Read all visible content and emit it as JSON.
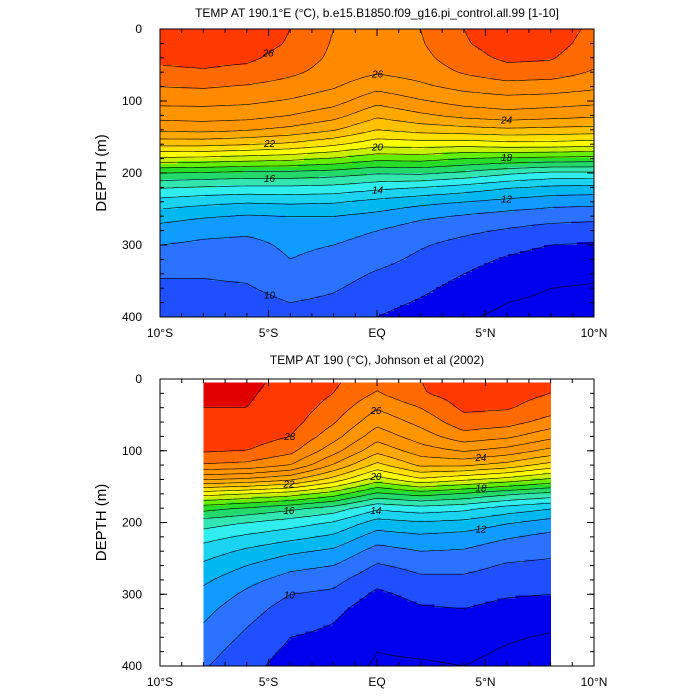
{
  "colors": {
    "frame": "#000000",
    "contour_line": "#000000",
    "background": "#ffffff",
    "scale": [
      {
        "temp": 8,
        "color": "#0000ee"
      },
      {
        "temp": 9,
        "color": "#1f4fff"
      },
      {
        "temp": 10,
        "color": "#2a72ff"
      },
      {
        "temp": 11,
        "color": "#0f9bff"
      },
      {
        "temp": 12,
        "color": "#00b7f0"
      },
      {
        "temp": 13,
        "color": "#19d3f0"
      },
      {
        "temp": 14,
        "color": "#30eeee"
      },
      {
        "temp": 15,
        "color": "#33e6b0"
      },
      {
        "temp": 16,
        "color": "#22d96a"
      },
      {
        "temp": 17,
        "color": "#28dd28"
      },
      {
        "temp": 18,
        "color": "#66ee00"
      },
      {
        "temp": 19,
        "color": "#c8f000"
      },
      {
        "temp": 20,
        "color": "#fdfd00"
      },
      {
        "temp": 21,
        "color": "#ffe000"
      },
      {
        "temp": 22,
        "color": "#ffc000"
      },
      {
        "temp": 23,
        "color": "#ffa800"
      },
      {
        "temp": 24,
        "color": "#ff9600"
      },
      {
        "temp": 26,
        "color": "#ff8a00"
      },
      {
        "temp": 27,
        "color": "#ff6a00"
      },
      {
        "temp": 28,
        "color": "#ff3a00"
      },
      {
        "temp": 29,
        "color": "#e00000"
      }
    ]
  },
  "chart_data": [
    {
      "type": "contour",
      "title": "TEMP AT 190.1°E (°C), b.e15.B1850.f09_g16.pi_control.all.99 [1-10]",
      "ylabel": "DEPTH (m)",
      "xlabel": "",
      "xlim": [
        -10,
        10
      ],
      "ylim": [
        400,
        0
      ],
      "y_inverted": true,
      "x_ticks": [
        {
          "value": -10,
          "label": "10°S"
        },
        {
          "value": -5,
          "label": "5°S"
        },
        {
          "value": 0,
          "label": "EQ"
        },
        {
          "value": 5,
          "label": "5°N"
        },
        {
          "value": 10,
          "label": "10°N"
        }
      ],
      "y_ticks": [
        {
          "value": 0,
          "label": "0"
        },
        {
          "value": 100,
          "label": "100"
        },
        {
          "value": 200,
          "label": "200"
        },
        {
          "value": 300,
          "label": "300"
        },
        {
          "value": 400,
          "label": "400"
        }
      ],
      "data_xlim": [
        -10,
        10
      ],
      "contour_interval": 1,
      "field": {
        "x": [
          -10,
          -8,
          -6,
          -4,
          -2,
          0,
          2,
          4,
          6,
          8,
          10
        ],
        "y": [
          0,
          20,
          40,
          60,
          80,
          100,
          120,
          140,
          160,
          180,
          200,
          220,
          240,
          260,
          280,
          300,
          320,
          340,
          360,
          380,
          400
        ],
        "z": [
          [
            28.5,
            28.6,
            28.6,
            28.0,
            27.0,
            26.8,
            27.0,
            28.0,
            28.6,
            28.5,
            27.8
          ],
          [
            28.4,
            28.5,
            28.5,
            27.9,
            26.9,
            26.7,
            26.9,
            27.9,
            28.5,
            28.4,
            27.6
          ],
          [
            28.2,
            28.3,
            28.2,
            27.6,
            26.8,
            26.5,
            26.7,
            27.6,
            28.2,
            28.1,
            27.3
          ],
          [
            27.8,
            27.9,
            27.7,
            27.2,
            26.6,
            26.1,
            26.4,
            27.1,
            27.6,
            27.5,
            26.9
          ],
          [
            27.0,
            27.1,
            26.9,
            26.6,
            26.1,
            25.3,
            25.8,
            26.3,
            26.6,
            26.5,
            26.2
          ],
          [
            26.3,
            26.3,
            26.2,
            25.9,
            25.4,
            24.3,
            24.9,
            25.4,
            25.6,
            25.5,
            25.3
          ],
          [
            25.4,
            25.5,
            25.4,
            25.0,
            24.4,
            23.2,
            23.8,
            24.3,
            24.6,
            24.4,
            24.2
          ],
          [
            24.2,
            24.3,
            24.1,
            23.7,
            23.1,
            22.0,
            22.4,
            22.6,
            22.8,
            22.7,
            22.6
          ],
          [
            22.3,
            22.3,
            22.1,
            21.8,
            21.2,
            20.4,
            20.5,
            20.4,
            20.6,
            20.6,
            20.4
          ],
          [
            19.8,
            19.7,
            19.5,
            19.3,
            18.9,
            18.3,
            18.4,
            18.0,
            17.8,
            17.7,
            17.6
          ],
          [
            17.0,
            16.9,
            16.7,
            16.7,
            16.5,
            16.1,
            16.2,
            15.8,
            15.2,
            14.8,
            14.8
          ],
          [
            15.1,
            14.9,
            14.8,
            14.8,
            14.7,
            14.3,
            14.0,
            13.6,
            13.1,
            12.8,
            12.7
          ],
          [
            13.6,
            13.3,
            13.1,
            13.2,
            13.1,
            12.7,
            12.3,
            12.0,
            11.7,
            11.4,
            11.3
          ],
          [
            12.4,
            12.1,
            11.9,
            12.0,
            12.0,
            11.7,
            11.2,
            10.9,
            10.6,
            10.4,
            10.3
          ],
          [
            11.6,
            11.3,
            11.2,
            11.4,
            11.4,
            11.0,
            10.5,
            10.2,
            9.9,
            9.6,
            9.5
          ],
          [
            11.0,
            10.8,
            10.7,
            11.2,
            11.0,
            10.6,
            10.1,
            9.7,
            9.3,
            9.0,
            8.9
          ],
          [
            10.5,
            10.4,
            10.4,
            11.0,
            10.7,
            10.3,
            9.8,
            9.3,
            8.9,
            8.6,
            8.5
          ],
          [
            10.1,
            10.1,
            10.2,
            10.7,
            10.4,
            9.9,
            9.5,
            9.0,
            8.6,
            8.3,
            8.2
          ],
          [
            9.8,
            9.8,
            9.9,
            10.4,
            10.1,
            9.6,
            9.2,
            8.7,
            8.3,
            8.0,
            7.9
          ],
          [
            9.4,
            9.5,
            9.6,
            10.0,
            9.8,
            9.3,
            8.9,
            8.4,
            8.0,
            7.8,
            7.7
          ],
          [
            9.1,
            9.2,
            9.3,
            9.6,
            9.5,
            9.0,
            8.6,
            8.1,
            7.8,
            7.6,
            7.5
          ]
        ]
      },
      "labeled_contours": [
        {
          "value": 28,
          "label": "28"
        },
        {
          "value": 26,
          "label": "26"
        },
        {
          "value": 24,
          "label": "24"
        },
        {
          "value": 22,
          "label": "22"
        },
        {
          "value": 20,
          "label": "20"
        },
        {
          "value": 18,
          "label": "18"
        },
        {
          "value": 16,
          "label": "16"
        },
        {
          "value": 14,
          "label": "14"
        },
        {
          "value": 12,
          "label": "12"
        },
        {
          "value": 10,
          "label": "10"
        }
      ]
    },
    {
      "type": "contour",
      "title": "TEMP AT 190 (°C), Johnson et al (2002)",
      "ylabel": "DEPTH (m)",
      "xlabel": "",
      "xlim": [
        -10,
        10
      ],
      "ylim": [
        400,
        0
      ],
      "y_inverted": true,
      "x_ticks": [
        {
          "value": -10,
          "label": "10°S"
        },
        {
          "value": -5,
          "label": "5°S"
        },
        {
          "value": 0,
          "label": "EQ"
        },
        {
          "value": 5,
          "label": "5°N"
        },
        {
          "value": 10,
          "label": "10°N"
        }
      ],
      "y_ticks": [
        {
          "value": 0,
          "label": "0"
        },
        {
          "value": 100,
          "label": "100"
        },
        {
          "value": 200,
          "label": "200"
        },
        {
          "value": 300,
          "label": "300"
        },
        {
          "value": 400,
          "label": "400"
        }
      ],
      "data_xlim": [
        -8,
        8
      ],
      "data_ylim": [
        5,
        400
      ],
      "contour_interval": 1,
      "field": {
        "x": [
          -8,
          -6,
          -4,
          -2,
          0,
          2,
          4,
          6,
          8
        ],
        "y": [
          0,
          20,
          40,
          60,
          80,
          100,
          120,
          140,
          160,
          180,
          200,
          220,
          240,
          260,
          280,
          300,
          320,
          340,
          360,
          380,
          400
        ],
        "z": [
          [
            29.2,
            29.2,
            28.8,
            28.2,
            27.4,
            28.0,
            28.6,
            28.6,
            28.2
          ],
          [
            29.1,
            29.1,
            28.7,
            28.0,
            26.9,
            27.9,
            28.5,
            28.4,
            28.0
          ],
          [
            29.0,
            29.0,
            28.6,
            27.6,
            26.1,
            27.0,
            28.2,
            28.1,
            27.5
          ],
          [
            28.8,
            28.8,
            28.4,
            27.1,
            25.3,
            26.3,
            27.6,
            27.4,
            26.6
          ],
          [
            28.6,
            28.5,
            28.0,
            26.4,
            24.4,
            25.5,
            26.6,
            26.2,
            25.3
          ],
          [
            28.1,
            28.0,
            27.3,
            25.4,
            23.3,
            24.5,
            25.1,
            24.6,
            23.7
          ],
          [
            26.9,
            26.7,
            26.0,
            23.9,
            21.7,
            23.2,
            23.2,
            22.6,
            21.6
          ],
          [
            24.1,
            23.8,
            23.2,
            21.6,
            19.5,
            20.8,
            20.2,
            19.6,
            18.8
          ],
          [
            20.4,
            20.0,
            19.5,
            18.5,
            16.8,
            17.4,
            16.9,
            16.2,
            15.7
          ],
          [
            17.4,
            16.9,
            16.3,
            15.6,
            14.2,
            14.6,
            14.3,
            13.6,
            13.1
          ],
          [
            15.5,
            15.0,
            14.5,
            13.9,
            12.6,
            12.9,
            12.7,
            12.1,
            11.6
          ],
          [
            14.4,
            13.8,
            13.3,
            12.8,
            11.5,
            11.8,
            11.6,
            11.1,
            10.7
          ],
          [
            13.5,
            12.8,
            12.2,
            11.8,
            10.6,
            11.0,
            10.9,
            10.4,
            10.2
          ],
          [
            12.8,
            12.0,
            11.3,
            11.0,
            9.9,
            10.3,
            10.3,
            9.9,
            9.8
          ],
          [
            12.2,
            11.3,
            10.6,
            10.3,
            9.3,
            9.8,
            9.8,
            9.5,
            9.4
          ],
          [
            11.7,
            10.8,
            10.0,
            9.8,
            8.8,
            9.3,
            9.4,
            9.1,
            9.0
          ],
          [
            11.3,
            10.4,
            9.6,
            9.3,
            8.4,
            8.9,
            9.0,
            8.7,
            8.6
          ],
          [
            11.0,
            10.1,
            9.3,
            9.0,
            8.2,
            8.6,
            8.7,
            8.4,
            8.2
          ],
          [
            10.7,
            9.8,
            9.0,
            8.8,
            8.1,
            8.3,
            8.4,
            8.1,
            7.9
          ],
          [
            10.4,
            9.5,
            8.8,
            8.6,
            8.0,
            8.1,
            8.2,
            7.9,
            7.7
          ],
          [
            10.1,
            9.3,
            8.6,
            8.4,
            7.9,
            7.9,
            8.0,
            7.7,
            7.5
          ]
        ]
      },
      "labeled_contours": [
        {
          "value": 28,
          "label": "28"
        },
        {
          "value": 26,
          "label": "26"
        },
        {
          "value": 24,
          "label": "24"
        },
        {
          "value": 22,
          "label": "22"
        },
        {
          "value": 20,
          "label": "20"
        },
        {
          "value": 18,
          "label": "18"
        },
        {
          "value": 16,
          "label": "16"
        },
        {
          "value": 14,
          "label": "14"
        },
        {
          "value": 12,
          "label": "12"
        },
        {
          "value": 10,
          "label": "10"
        }
      ]
    }
  ]
}
